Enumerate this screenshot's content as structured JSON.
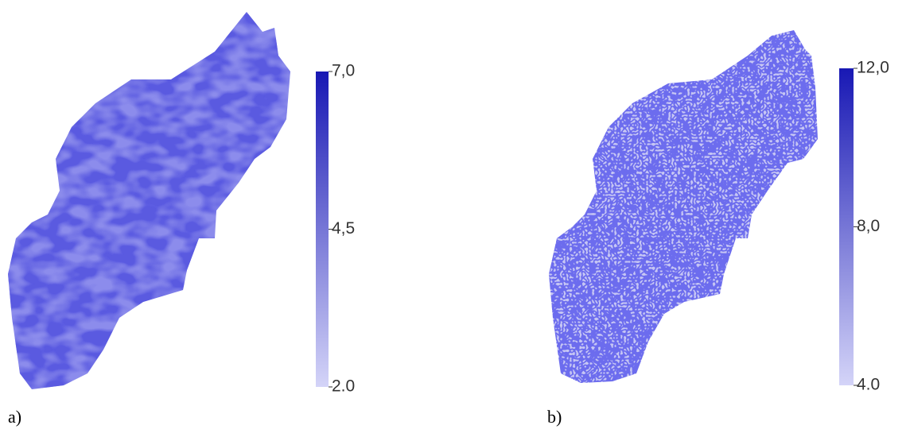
{
  "panels": [
    {
      "label": "a)",
      "colorbar": {
        "lim": [
          2.0,
          7.0
        ],
        "ticks": [
          {
            "value": 7.0,
            "label": "7,0"
          },
          {
            "value": 4.5,
            "label": "4,5"
          },
          {
            "value": 2.0,
            "label": "2.0"
          }
        ]
      }
    },
    {
      "label": "b)",
      "colorbar": {
        "lim": [
          4.0,
          12.0
        ],
        "ticks": [
          {
            "value": 12.0,
            "label": "12,0"
          },
          {
            "value": 8.0,
            "label": "8,0"
          },
          {
            "value": 4.0,
            "label": "4.0"
          }
        ]
      }
    }
  ]
}
